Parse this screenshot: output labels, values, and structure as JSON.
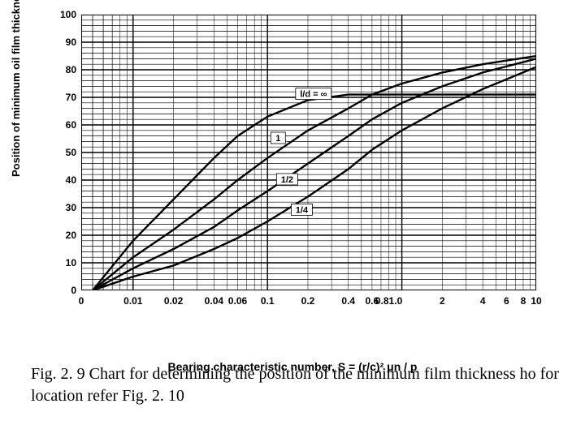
{
  "chart": {
    "type": "line-logx",
    "background_color": "#ffffff",
    "line_color": "#000000",
    "grid_color": "#000000",
    "border_color": "#000000",
    "y_axis_label": "Position of minimum oil film thickness  φ, deg.",
    "x_axis_label": "Bearing characteristic number,  S = (r/c)² μn / p",
    "y_ticks": [
      0,
      10,
      20,
      30,
      40,
      50,
      60,
      70,
      80,
      90,
      100
    ],
    "ylim": [
      0,
      100
    ],
    "x_ticks": [
      0,
      0.01,
      0.02,
      0.04,
      0.06,
      0.1,
      0.2,
      0.4,
      0.6,
      0.8,
      1.0,
      2,
      4,
      6,
      8,
      10
    ],
    "x_tick_labels": [
      "0",
      "0.01",
      "0.02",
      "0.04",
      "0.06",
      "0.1",
      "0.2",
      "0.4",
      "0.6",
      "0.81.0",
      "",
      "2",
      "4",
      "6",
      "8",
      "10"
    ],
    "xlim_log": [
      0.005,
      10
    ],
    "curves": [
      {
        "name": "l/d = ∞",
        "label": "l/d = ∞",
        "label_at": {
          "s": 0.22,
          "phi": 71
        },
        "points": [
          [
            0.005,
            0
          ],
          [
            0.01,
            18
          ],
          [
            0.02,
            33
          ],
          [
            0.04,
            48
          ],
          [
            0.06,
            56
          ],
          [
            0.1,
            63
          ],
          [
            0.2,
            69
          ],
          [
            0.4,
            71
          ],
          [
            0.6,
            71
          ],
          [
            1,
            71
          ],
          [
            2,
            71
          ],
          [
            4,
            71
          ],
          [
            10,
            71
          ]
        ]
      },
      {
        "name": "1",
        "label": "1",
        "label_at": {
          "s": 0.12,
          "phi": 55
        },
        "points": [
          [
            0.005,
            0
          ],
          [
            0.01,
            12
          ],
          [
            0.02,
            22
          ],
          [
            0.04,
            33
          ],
          [
            0.06,
            40
          ],
          [
            0.1,
            48
          ],
          [
            0.2,
            58
          ],
          [
            0.4,
            66
          ],
          [
            0.6,
            71
          ],
          [
            1,
            75
          ],
          [
            2,
            79
          ],
          [
            4,
            82
          ],
          [
            10,
            85
          ]
        ]
      },
      {
        "name": "1/2",
        "label": "1/2",
        "label_at": {
          "s": 0.14,
          "phi": 40
        },
        "points": [
          [
            0.005,
            0
          ],
          [
            0.01,
            8
          ],
          [
            0.02,
            15
          ],
          [
            0.04,
            23
          ],
          [
            0.06,
            29
          ],
          [
            0.1,
            36
          ],
          [
            0.2,
            46
          ],
          [
            0.4,
            56
          ],
          [
            0.6,
            62
          ],
          [
            1,
            68
          ],
          [
            2,
            74
          ],
          [
            4,
            79
          ],
          [
            10,
            84
          ]
        ]
      },
      {
        "name": "1/4",
        "label": "1/4",
        "label_at": {
          "s": 0.18,
          "phi": 29
        },
        "points": [
          [
            0.005,
            0
          ],
          [
            0.01,
            5
          ],
          [
            0.02,
            9
          ],
          [
            0.04,
            15
          ],
          [
            0.06,
            19
          ],
          [
            0.1,
            25
          ],
          [
            0.2,
            34
          ],
          [
            0.4,
            44
          ],
          [
            0.6,
            51
          ],
          [
            1,
            58
          ],
          [
            2,
            66
          ],
          [
            4,
            73
          ],
          [
            10,
            81
          ]
        ]
      }
    ],
    "curve_stroke_width": 2.4,
    "grid_minor_stroke": 0.5,
    "grid_major_stroke": 1.4,
    "title_font": "Arial",
    "tick_fontsize": 12,
    "axis_label_fontsize": 13
  },
  "caption": {
    "text": "Fig. 2. 9 Chart for determining the position of the minimum film thickness ho for location refer Fig. 2. 10",
    "fontsize": 20,
    "font": "Georgia"
  }
}
